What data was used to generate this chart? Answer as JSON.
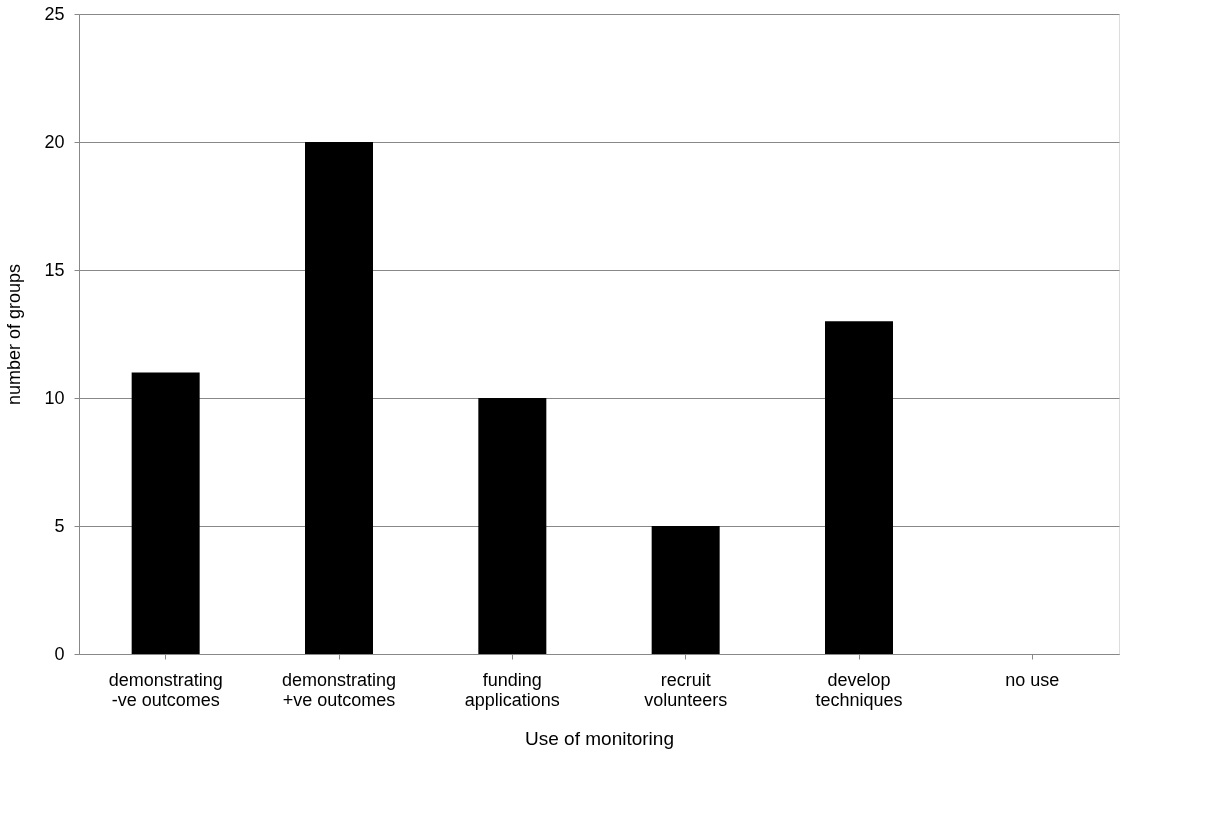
{
  "chart_data": {
    "type": "bar",
    "xlabel": "Use of monitoring",
    "ylabel": "number of groups",
    "categories": [
      "demonstrating\n-ve outcomes",
      "demonstrating\n+ve outcomes",
      "funding\napplications",
      "recruit\nvolunteers",
      "develop\ntechniques",
      "no use"
    ],
    "values": [
      11,
      20,
      10,
      5,
      13,
      0
    ],
    "color": "#000000",
    "ylim": [
      0,
      25
    ],
    "yticks": [
      0,
      5,
      10,
      15,
      20,
      25
    ],
    "grid": "y"
  }
}
